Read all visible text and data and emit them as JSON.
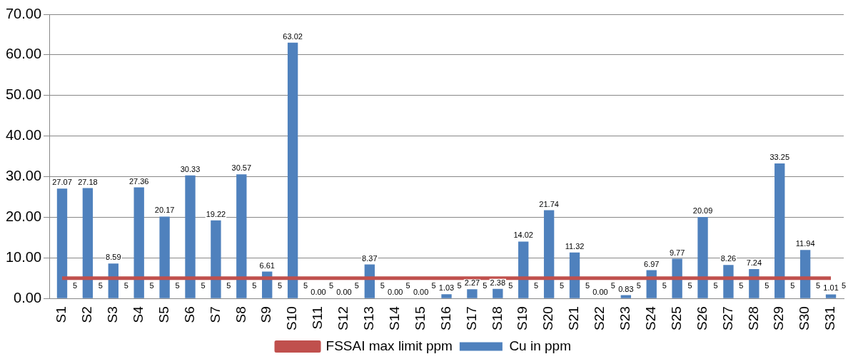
{
  "chart_data": {
    "type": "bar",
    "categories": [
      "S1",
      "S2",
      "S3",
      "S4",
      "S5",
      "S6",
      "S7",
      "S8",
      "S9",
      "S10",
      "S11",
      "S12",
      "S13",
      "S14",
      "S15",
      "S16",
      "S17",
      "S18",
      "S19",
      "S20",
      "S21",
      "S22",
      "S23",
      "S24",
      "S25",
      "S26",
      "S27",
      "S28",
      "S29",
      "S30",
      "S31"
    ],
    "series": [
      {
        "name": "Cu in ppm",
        "color": "#4f81bd",
        "values": [
          27.07,
          27.18,
          8.59,
          27.36,
          20.17,
          30.33,
          19.22,
          30.57,
          6.61,
          63.02,
          0.0,
          0.0,
          8.37,
          0.0,
          0.0,
          1.03,
          2.27,
          2.38,
          14.02,
          21.74,
          11.32,
          0.0,
          0.83,
          6.97,
          9.77,
          20.09,
          8.26,
          7.24,
          33.25,
          11.94,
          1.01
        ],
        "value_labels": [
          "27.07",
          "27.18",
          "8.59",
          "27.36",
          "20.17",
          "30.33",
          "19.22",
          "30.57",
          "6.61",
          "63.02",
          "0.00",
          "0.00",
          "8.37",
          "0.00",
          "0.00",
          "1.03",
          "2.27",
          "2.38",
          "14.02",
          "21.74",
          "11.32",
          "0.00",
          "0.83",
          "6.97",
          "9.77",
          "20.09",
          "8.26",
          "7.24",
          "33.25",
          "11.94",
          "1.01"
        ]
      },
      {
        "name": "FSSAI max limit ppm",
        "type": "line",
        "color": "#c0504d",
        "values": [
          5,
          5,
          5,
          5,
          5,
          5,
          5,
          5,
          5,
          5,
          5,
          5,
          5,
          5,
          5,
          5,
          5,
          5,
          5,
          5,
          5,
          5,
          5,
          5,
          5,
          5,
          5,
          5,
          5,
          5,
          5
        ],
        "value_labels": [
          "5",
          "5",
          "5",
          "5",
          "5",
          "5",
          "5",
          "5",
          "5",
          "5",
          "5",
          "5",
          "5",
          "5",
          "5",
          "5",
          "5",
          "5",
          "5",
          "5",
          "5",
          "5",
          "5",
          "5",
          "5",
          "5",
          "5",
          "5",
          "5",
          "5",
          "5"
        ]
      }
    ],
    "ylim": [
      0,
      70
    ],
    "yticks": [
      {
        "value": 0,
        "label": "0.00"
      },
      {
        "value": 10,
        "label": "10.00"
      },
      {
        "value": 20,
        "label": "20.00"
      },
      {
        "value": 30,
        "label": "30.00"
      },
      {
        "value": 40,
        "label": "40.00"
      },
      {
        "value": 50,
        "label": "50.00"
      },
      {
        "value": 60,
        "label": "60.00"
      },
      {
        "value": 70,
        "label": "70.00"
      }
    ],
    "grid": "y",
    "legend": "bottom",
    "marker": "none",
    "line_style": "solid"
  }
}
